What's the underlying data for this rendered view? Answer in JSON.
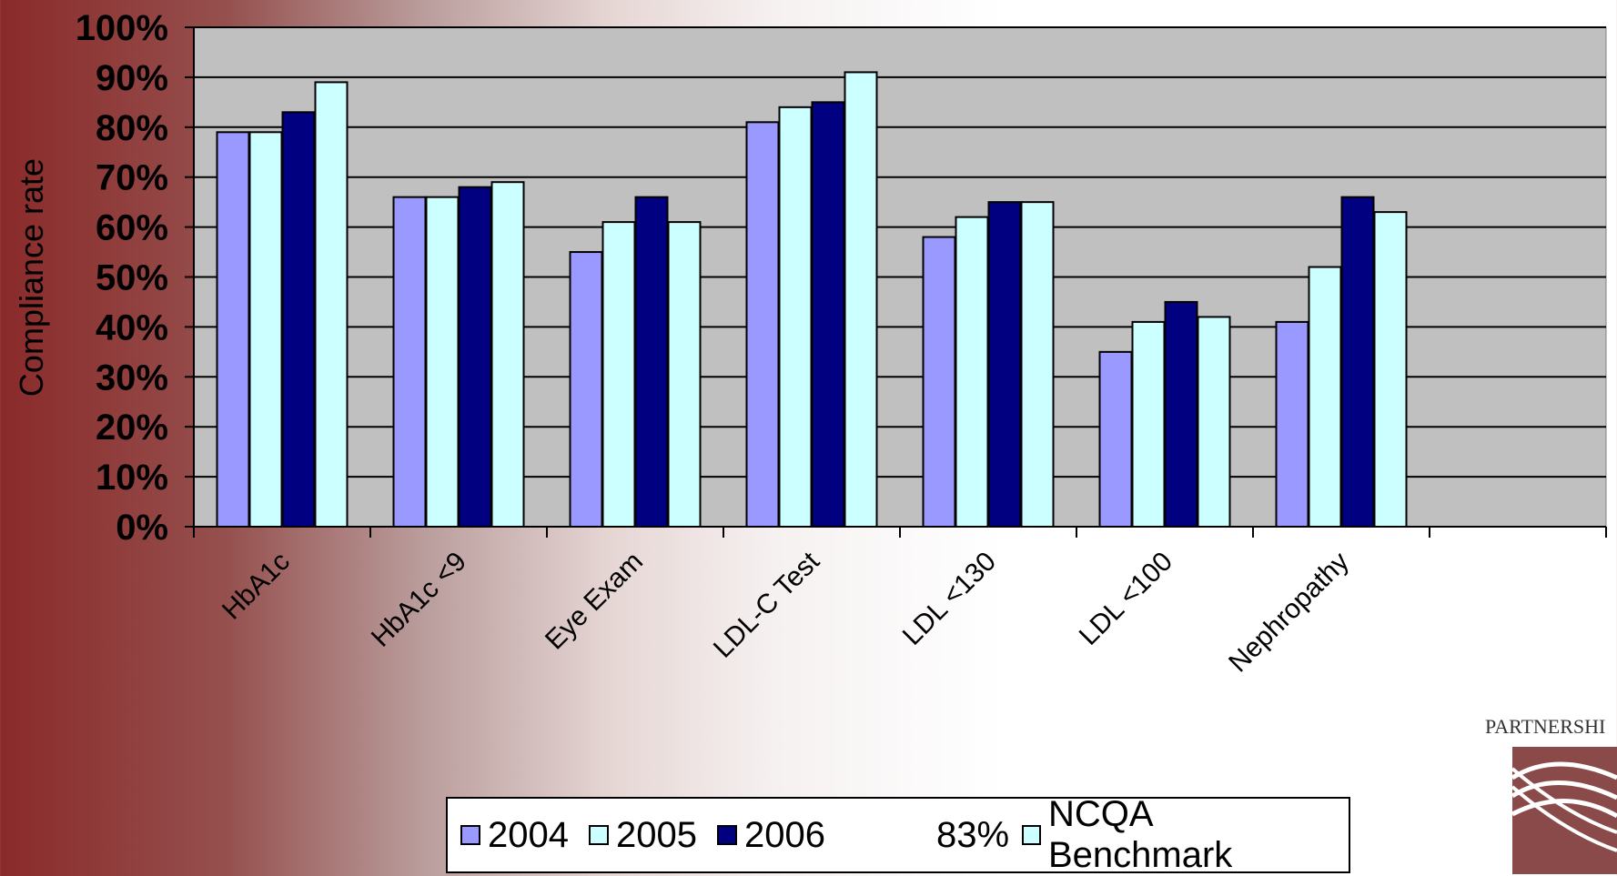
{
  "chart_data": {
    "type": "bar",
    "categories": [
      "HbA1c",
      "HbA1c <9",
      "Eye Exam",
      "LDL-C Test",
      "LDL <130",
      "LDL <100",
      "Nephropathy"
    ],
    "series": [
      {
        "name": "2004",
        "color": "#9999ff",
        "values": [
          79,
          66,
          55,
          81,
          58,
          35,
          41
        ]
      },
      {
        "name": "2005",
        "color": "#ccffff",
        "values": [
          79,
          66,
          61,
          84,
          62,
          41,
          52
        ]
      },
      {
        "name": "2006",
        "color": "#000080",
        "values": [
          83,
          68,
          66,
          85,
          65,
          45,
          66
        ]
      },
      {
        "name": "NCQA Benchmark",
        "color": "#ccffff",
        "values": [
          89,
          69,
          61,
          91,
          65,
          42,
          63
        ]
      }
    ],
    "ylabel": "Compliance rate",
    "ylim": [
      0,
      100
    ],
    "ytick_labels": [
      "0%",
      "10%",
      "20%",
      "30%",
      "40%",
      "50%",
      "60%",
      "70%",
      "80%",
      "90%",
      "100%"
    ],
    "grid": true,
    "plot_background": "#c0c0c0",
    "legend_position": "bottom"
  },
  "legend": {
    "items": [
      {
        "label": "2004",
        "color": "#9999ff"
      },
      {
        "label": "2005",
        "color": "#ccffff"
      },
      {
        "label": "2006",
        "color": "#000080"
      }
    ],
    "extra_text": "83%",
    "benchmark": {
      "label": "NCQA Benchmark",
      "color": "#ccffff"
    }
  },
  "logo": {
    "text": "PARTNERSHI"
  }
}
